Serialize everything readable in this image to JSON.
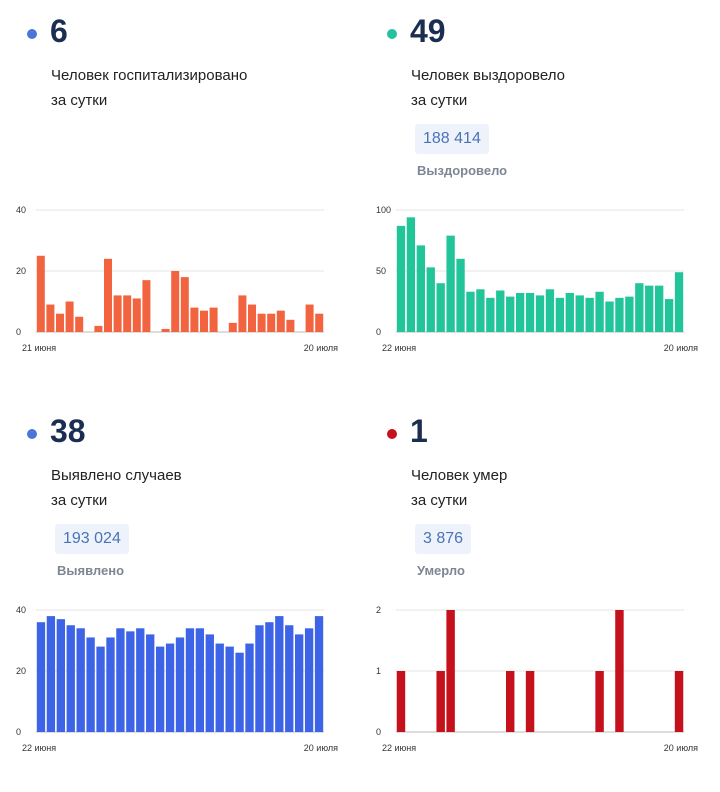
{
  "panels": [
    {
      "value": "6",
      "line1": "Человек госпитализировано",
      "line2": "за сутки",
      "total": "",
      "total_label": "",
      "color": "#4a76d8",
      "bar_color": "#f2643f"
    },
    {
      "value": "49",
      "line1": "Человек выздоровело",
      "line2": "за сутки",
      "total": "188 414",
      "total_label": "Выздоровело",
      "color": "#25c2a0",
      "bar_color": "#22c49a"
    },
    {
      "value": "38",
      "line1": "Выявлено случаев",
      "line2": "за сутки",
      "total": "193 024",
      "total_label": "Выявлено",
      "color": "#4a76d8",
      "bar_color": "#3d64e6"
    },
    {
      "value": "1",
      "line1": "Человек умер",
      "line2": "за сутки",
      "total": "3 876",
      "total_label": "Умерло",
      "color": "#c4111b",
      "bar_color": "#c4111b"
    }
  ],
  "chart_data": [
    {
      "type": "bar",
      "yticks": [
        0,
        20,
        40
      ],
      "ylim": [
        0,
        40
      ],
      "xlabels": [
        "21 июня",
        "20 июля"
      ],
      "values": [
        25,
        9,
        6,
        10,
        5,
        0,
        2,
        24,
        12,
        12,
        11,
        17,
        0,
        1,
        20,
        18,
        8,
        7,
        8,
        0,
        3,
        12,
        9,
        6,
        6,
        7,
        4,
        0,
        9,
        6
      ]
    },
    {
      "type": "bar",
      "yticks": [
        0,
        50,
        100
      ],
      "ylim": [
        0,
        100
      ],
      "xlabels": [
        "22 июня",
        "20 июля"
      ],
      "values": [
        87,
        94,
        71,
        53,
        40,
        79,
        60,
        33,
        35,
        28,
        34,
        29,
        32,
        32,
        30,
        35,
        28,
        32,
        30,
        28,
        33,
        25,
        28,
        29,
        40,
        38,
        38,
        27,
        49
      ]
    },
    {
      "type": "bar",
      "yticks": [
        0,
        20,
        40
      ],
      "ylim": [
        0,
        40
      ],
      "xlabels": [
        "22 июня",
        "20 июля"
      ],
      "values": [
        36,
        38,
        37,
        35,
        34,
        31,
        28,
        31,
        34,
        33,
        34,
        32,
        28,
        29,
        31,
        34,
        34,
        32,
        29,
        28,
        26,
        29,
        35,
        36,
        38,
        35,
        32,
        34,
        38
      ]
    },
    {
      "type": "bar",
      "yticks": [
        0,
        1,
        2
      ],
      "ylim": [
        0,
        2
      ],
      "xlabels": [
        "22 июня",
        "20 июля"
      ],
      "values": [
        1,
        0,
        0,
        0,
        1,
        2,
        0,
        0,
        0,
        0,
        0,
        1,
        0,
        1,
        0,
        0,
        0,
        0,
        0,
        0,
        1,
        0,
        2,
        0,
        0,
        0,
        0,
        0,
        1
      ]
    }
  ]
}
